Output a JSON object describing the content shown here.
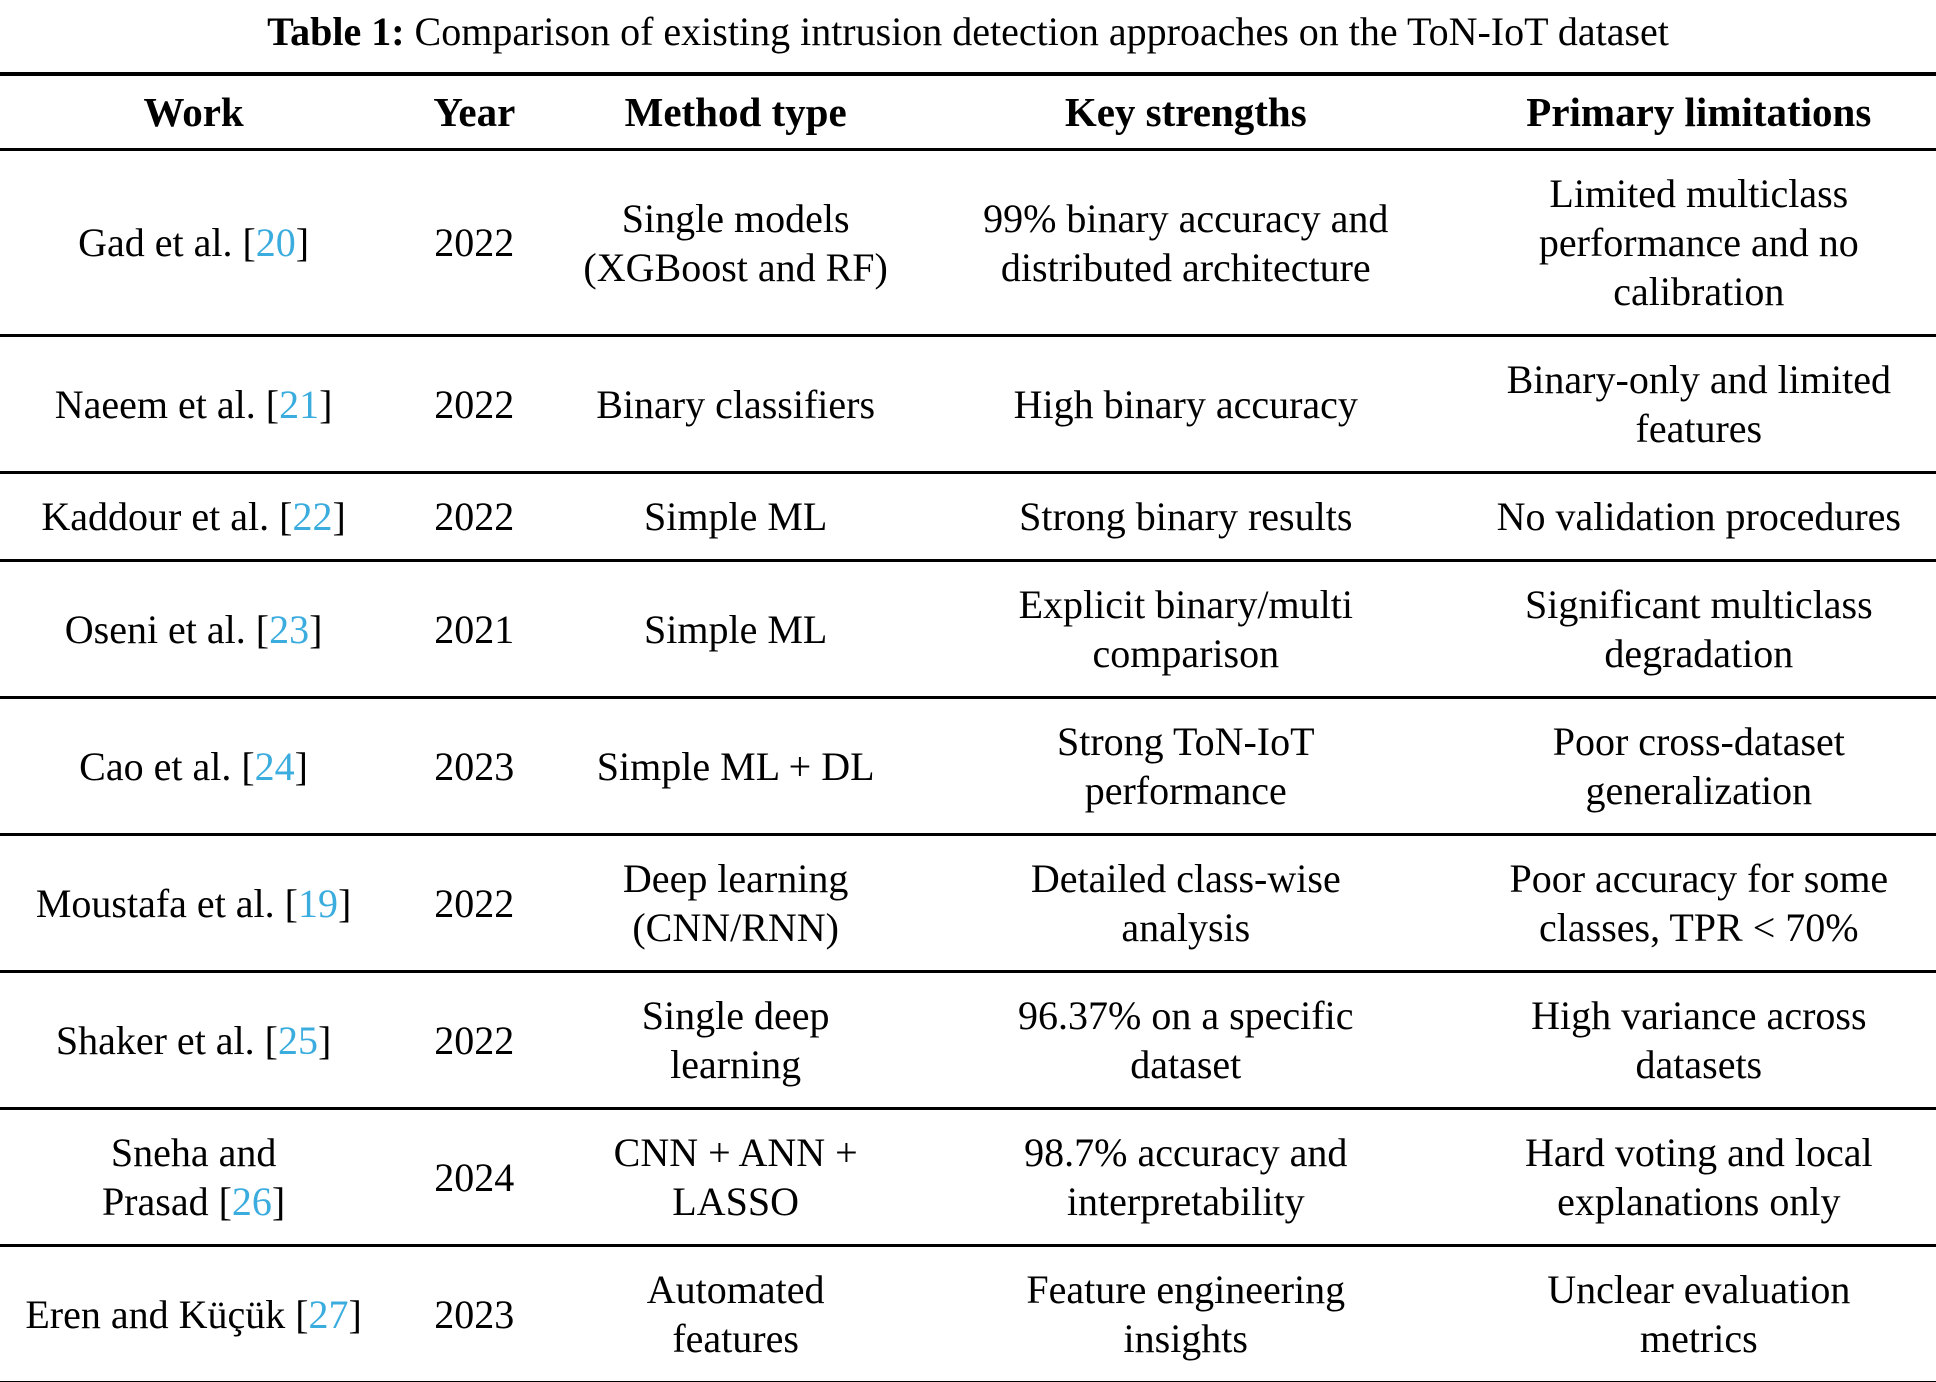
{
  "title": {
    "label": "Table 1:",
    "text": "Comparison of existing intrusion detection approaches on the ToN-IoT dataset"
  },
  "colors": {
    "citation_blue": "#3bacde"
  },
  "punct": {
    "cite_open": "[",
    "cite_close": "]"
  },
  "table": {
    "headers": [
      "Work",
      "Year",
      "Method type",
      "Key strengths",
      "Primary limitations"
    ],
    "rows": [
      {
        "work": "Gad et al.",
        "ref": "20",
        "year": "2022",
        "method": "Single models\n(XGBoost and RF)",
        "strengths": "99% binary accuracy and\ndistributed architecture",
        "limitations": "Limited multiclass\nperformance and no\ncalibration"
      },
      {
        "work": "Naeem et al.",
        "ref": "21",
        "year": "2022",
        "method": "Binary classifiers",
        "strengths": "High binary accuracy",
        "limitations": "Binary-only and limited\nfeatures"
      },
      {
        "work": "Kaddour et al.",
        "ref": "22",
        "year": "2022",
        "method": "Simple ML",
        "strengths": "Strong binary results",
        "limitations": "No validation procedures"
      },
      {
        "work": "Oseni et al.",
        "ref": "23",
        "year": "2021",
        "method": "Simple ML",
        "strengths": "Explicit binary/multi\ncomparison",
        "limitations": "Significant multiclass\ndegradation"
      },
      {
        "work": "Cao et al.",
        "ref": "24",
        "year": "2023",
        "method": "Simple ML + DL",
        "strengths": "Strong ToN-IoT\nperformance",
        "limitations": "Poor cross-dataset\ngeneralization"
      },
      {
        "work": "Moustafa et al.",
        "ref": "19",
        "year": "2022",
        "method": "Deep learning\n(CNN/RNN)",
        "strengths": "Detailed class-wise\nanalysis",
        "limitations": "Poor accuracy for some\nclasses, TPR < 70%"
      },
      {
        "work": "Shaker et al.",
        "ref": "25",
        "year": "2022",
        "method": "Single deep\nlearning",
        "strengths": "96.37% on a specific\ndataset",
        "limitations": "High variance across\ndatasets"
      },
      {
        "work": "Sneha and\nPrasad",
        "ref": "26",
        "year": "2024",
        "method": "CNN + ANN +\nLASSO",
        "strengths": "98.7% accuracy and\ninterpretability",
        "limitations": "Hard voting and local\nexplanations only"
      },
      {
        "work": "Eren and Küçük",
        "ref": "27",
        "year": "2023",
        "method": "Automated\nfeatures",
        "strengths": "Feature engineering\ninsights",
        "limitations": "Unclear evaluation\nmetrics"
      }
    ]
  }
}
